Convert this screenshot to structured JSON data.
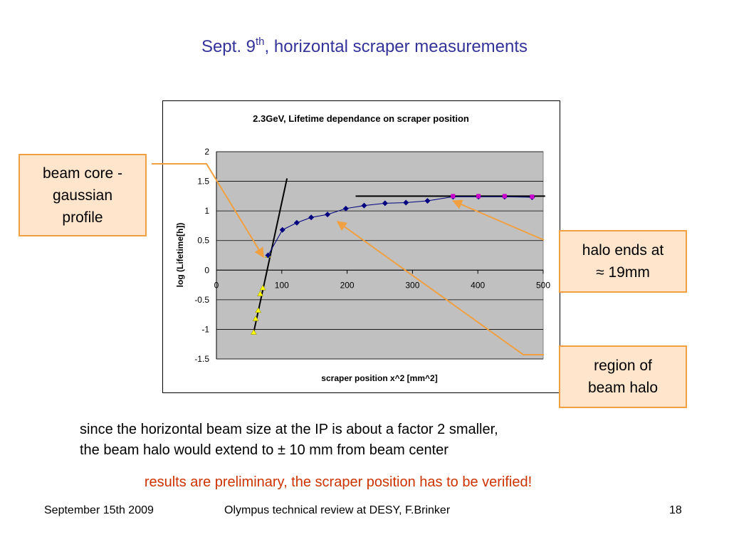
{
  "slide": {
    "title_main": "Sept. 9",
    "title_sup": "th",
    "title_rest": ", horizontal scraper measurements"
  },
  "callouts": {
    "beam_core": "beam core -\ngaussian\nprofile",
    "halo_ends": "halo ends at\n≈ 19mm",
    "halo_region": "region of\nbeam halo"
  },
  "body": {
    "line1": "since the horizontal beam size at the IP is about a factor 2 smaller,",
    "line2": "the beam halo would extend to ± 10 mm from beam center",
    "note": "results are preliminary, the scraper position has to be verified!"
  },
  "footer": {
    "date": "September 15th 2009",
    "event": "Olympus technical review at DESY, F.Brinker",
    "page": "18"
  },
  "chart_data": {
    "type": "scatter",
    "title": "2.3GeV, Lifetime dependance on scraper position",
    "xlabel": "scraper position x^2 [mm^2]",
    "ylabel": "log (Lifetime[h])",
    "xlim": [
      0,
      500
    ],
    "ylim": [
      -1.5,
      2
    ],
    "xticks": [
      "0",
      "100",
      "200",
      "300",
      "400",
      "500"
    ],
    "yticks": [
      "-1.5",
      "-1",
      "-0.5",
      "0",
      "0.5",
      "1",
      "1.5",
      "2"
    ],
    "grid": true,
    "legend": "none",
    "colors": {
      "plot_bg": "#c0c0c0",
      "core": "#ffff00",
      "halo": "#000080",
      "plateau": "#cc00cc",
      "fit": "#000000",
      "arrow": "#f0a040"
    },
    "series": [
      {
        "style": "core",
        "points": [
          [
            57,
            -1.05
          ],
          [
            60,
            -0.82
          ],
          [
            64,
            -0.68
          ],
          [
            67,
            -0.4
          ],
          [
            71,
            -0.3
          ],
          [
            79,
            0.25
          ]
        ]
      },
      {
        "style": "halo",
        "points": [
          [
            79,
            0.25
          ],
          [
            101,
            0.68
          ],
          [
            123,
            0.8
          ],
          [
            145,
            0.89
          ],
          [
            170,
            0.94
          ],
          [
            198,
            1.04
          ],
          [
            226,
            1.09
          ],
          [
            258,
            1.13
          ],
          [
            290,
            1.14
          ],
          [
            323,
            1.17
          ],
          [
            362,
            1.24
          ],
          [
            401,
            1.24
          ],
          [
            441,
            1.24
          ],
          [
            483,
            1.23
          ]
        ]
      },
      {
        "style": "plateau",
        "points": [
          [
            362,
            1.25
          ],
          [
            401,
            1.25
          ],
          [
            441,
            1.25
          ],
          [
            483,
            1.24
          ]
        ]
      }
    ],
    "fit_lines": [
      {
        "from": [
          57,
          -1.05
        ],
        "to": [
          108,
          1.55
        ]
      },
      {
        "from": [
          213,
          1.25
        ],
        "to": [
          503,
          1.25
        ]
      }
    ],
    "arrows": [
      {
        "target": [
          72,
          0.22
        ]
      },
      {
        "target": [
          362,
          1.17
        ]
      },
      {
        "target": [
          185,
          0.82
        ]
      }
    ]
  }
}
